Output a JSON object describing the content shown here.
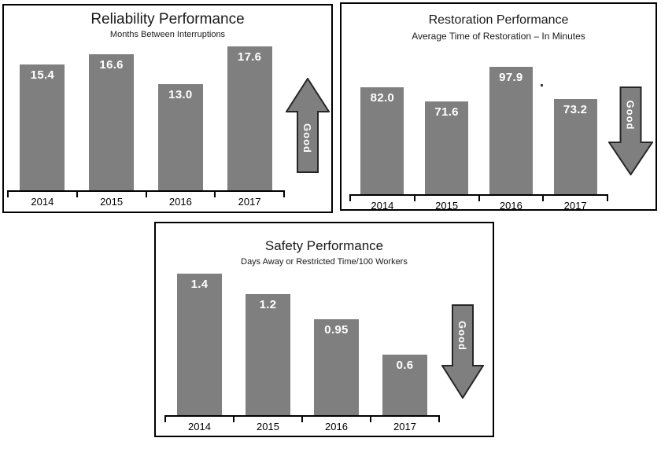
{
  "page": {
    "background": "#ffffff"
  },
  "colors": {
    "bar": "#7f7f7f",
    "bar_label": "#ffffff",
    "arrow_fill": "#7f7f7f",
    "arrow_border": "#262626",
    "arrow_label": "#ffffff",
    "panel_border": "#000000",
    "axis": "#000000",
    "text": "#1a1a1a"
  },
  "chart_data": [
    {
      "type": "bar",
      "title": "Reliability Performance",
      "subtitle": "Months Between Interruptions",
      "categories": [
        "2014",
        "2015",
        "2016",
        "2017"
      ],
      "values": [
        15.4,
        16.6,
        13.0,
        17.6
      ],
      "value_labels": [
        "15.4",
        "16.6",
        "13.0",
        "17.6"
      ],
      "xlabel": "",
      "ylabel": "",
      "ylim": [
        0,
        17.6
      ],
      "grid": false,
      "legend": "none",
      "data_labels": "inside-top",
      "good_arrow": {
        "direction": "up",
        "label": "Good"
      }
    },
    {
      "type": "bar",
      "title": "Restoration Performance",
      "subtitle": "Average Time of Restoration – In Minutes",
      "categories": [
        "2014",
        "2015",
        "2016",
        "2017"
      ],
      "values": [
        82.0,
        71.6,
        97.9,
        73.2
      ],
      "value_labels": [
        "82.0",
        "71.6",
        "97.9",
        "73.2"
      ],
      "xlabel": "",
      "ylabel": "",
      "ylim": [
        0,
        97.9
      ],
      "grid": false,
      "legend": "none",
      "data_labels": "inside-top",
      "good_arrow": {
        "direction": "down",
        "label": "Good"
      },
      "annotations": [
        {
          "text": ".",
          "note": "stray dot right of 2016 bar"
        }
      ]
    },
    {
      "type": "bar",
      "title": "Safety Performance",
      "subtitle": "Days Away or Restricted Time/100 Workers",
      "categories": [
        "2014",
        "2015",
        "2016",
        "2017"
      ],
      "values": [
        1.4,
        1.2,
        0.95,
        0.6
      ],
      "value_labels": [
        "1.4",
        "1.2",
        "0.95",
        "0.6"
      ],
      "xlabel": "",
      "ylabel": "",
      "ylim": [
        0,
        1.4
      ],
      "grid": false,
      "legend": "none",
      "data_labels": "inside-top",
      "good_arrow": {
        "direction": "down",
        "label": "Good"
      }
    }
  ]
}
